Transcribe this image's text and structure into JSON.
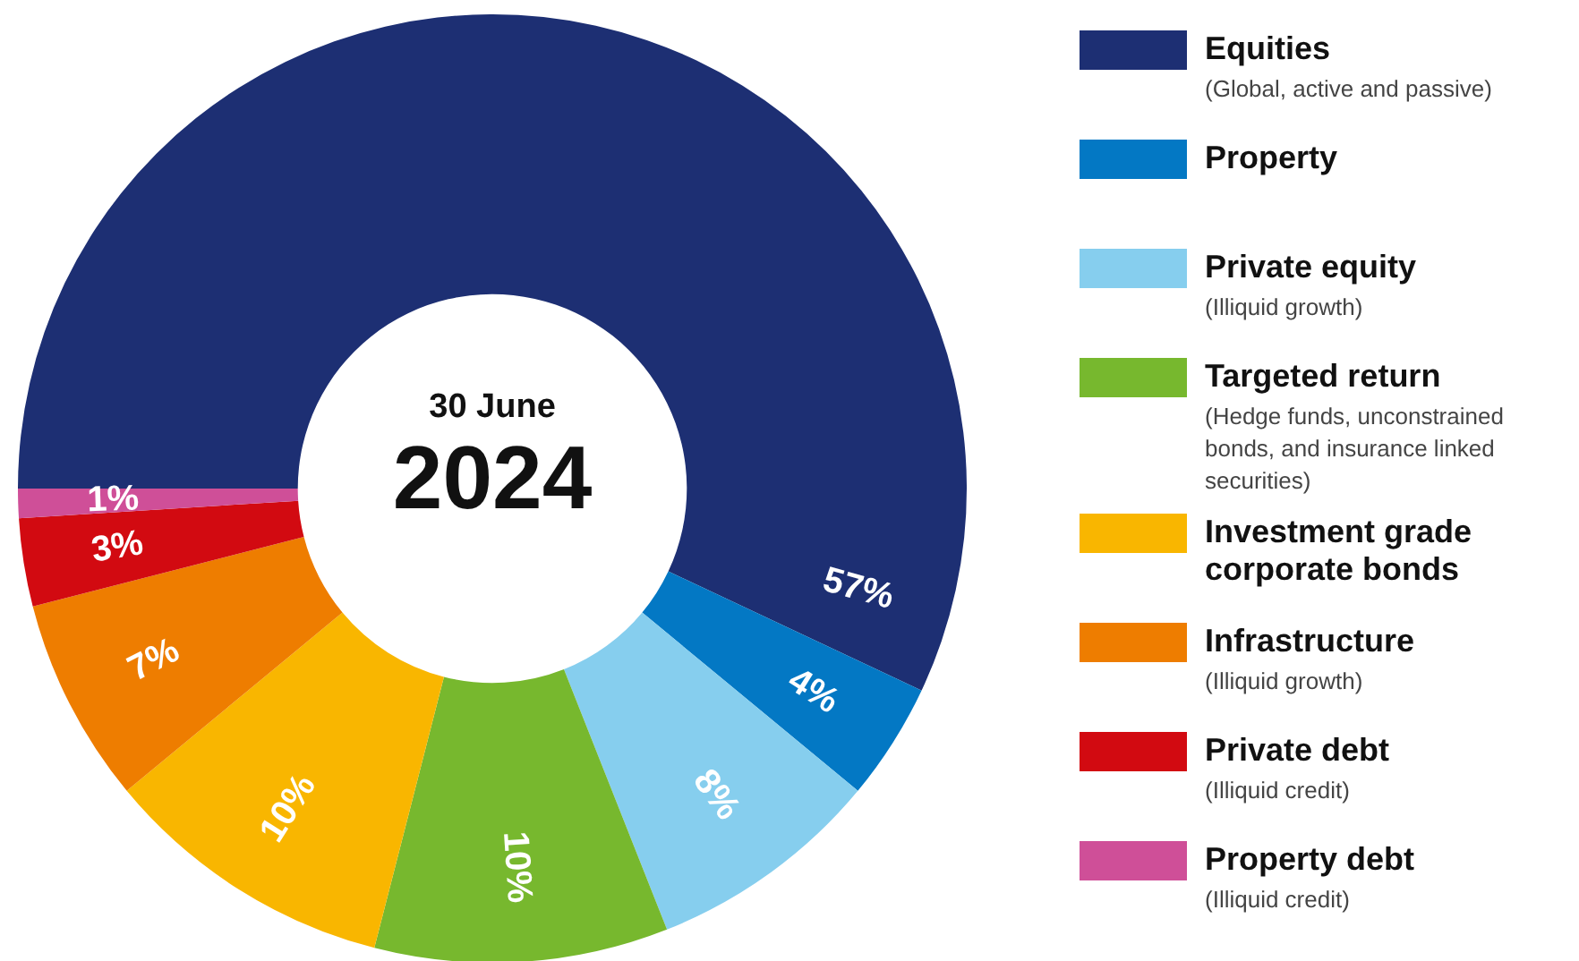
{
  "chart_data": {
    "type": "donut",
    "title": "30 June",
    "subtitle": "2024",
    "categories": [
      "Equities",
      "Property",
      "Private equity",
      "Targeted return",
      "Investment grade corporate bonds",
      "Infrastructure",
      "Private debt",
      "Property debt"
    ],
    "values": [
      57,
      4,
      8,
      10,
      10,
      7,
      3,
      1
    ],
    "colors": [
      "#1d2f73",
      "#0378c4",
      "#86ceee",
      "#77b82e",
      "#f9b600",
      "#ee7d00",
      "#d20a11",
      "#cf4f98"
    ],
    "value_labels": [
      "57%",
      "4%",
      "8%",
      "10%",
      "10%",
      "7%",
      "3%",
      "1%"
    ],
    "legend": "right",
    "annotations": [
      {
        "text": "(Global, active and passive)",
        "x": "Equities"
      },
      {
        "text": "(Illiquid growth)",
        "x": "Private equity"
      },
      {
        "text": "(Hedge funds, unconstrained bonds, and insurance linked securities)",
        "x": "Targeted return"
      },
      {
        "text": "(Illiquid growth)",
        "x": "Infrastructure"
      },
      {
        "text": "(Illiquid credit)",
        "x": "Private debt"
      },
      {
        "text": "(Illiquid credit)",
        "x": "Property debt"
      }
    ]
  }
}
